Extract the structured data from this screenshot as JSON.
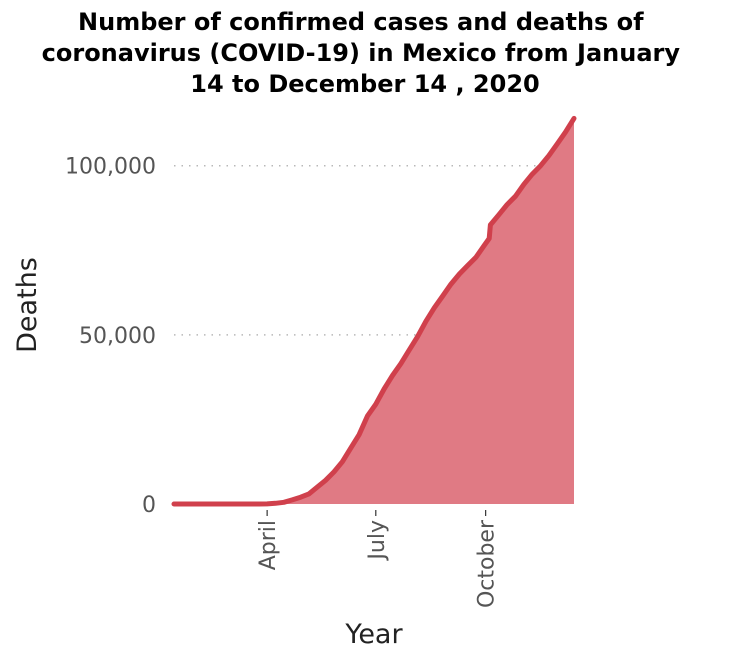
{
  "chart_data": {
    "type": "area",
    "title": "Number of confirmed cases and deaths of coronavirus (COVID-19) in Mexico from January 14 to December 14 , 2020",
    "title_lines": [
      "Number of confirmed cases and deaths of",
      "coronavirus (COVID-19) in Mexico from January",
      "14 to December 14 , 2020"
    ],
    "xlabel": "Year",
    "ylabel": "Deaths",
    "x_range": [
      "2020-01-14",
      "2020-12-14"
    ],
    "ylim": [
      0,
      115000
    ],
    "x_ticks": [
      {
        "label": "April",
        "date": "2020-04-01"
      },
      {
        "label": "July",
        "date": "2020-07-01"
      },
      {
        "label": "October",
        "date": "2020-10-01"
      }
    ],
    "y_ticks": [
      {
        "label": "0",
        "value": 0
      },
      {
        "label": "50,000",
        "value": 50000
      },
      {
        "label": "100,000",
        "value": 100000
      }
    ],
    "grid": {
      "horizontal": true,
      "vertical": false,
      "style": "dotted"
    },
    "legend": "none",
    "colors": {
      "line": "#d0404c",
      "fill": "#e07a84"
    },
    "series": [
      {
        "x": [
          "2020-01-14",
          "2020-03-18",
          "2020-03-25",
          "2020-04-01",
          "2020-04-08",
          "2020-04-15",
          "2020-04-22",
          "2020-04-29",
          "2020-05-06",
          "2020-05-13",
          "2020-05-20",
          "2020-05-27",
          "2020-06-03",
          "2020-06-10",
          "2020-06-17",
          "2020-06-24",
          "2020-07-01",
          "2020-07-08",
          "2020-07-15",
          "2020-07-22",
          "2020-07-29",
          "2020-08-05",
          "2020-08-12",
          "2020-08-19",
          "2020-08-26",
          "2020-09-02",
          "2020-09-09",
          "2020-09-16",
          "2020-09-23",
          "2020-09-30",
          "2020-10-04",
          "2020-10-05",
          "2020-10-12",
          "2020-10-19",
          "2020-10-26",
          "2020-11-02",
          "2020-11-09",
          "2020-11-16",
          "2020-11-23",
          "2020-11-30",
          "2020-12-07",
          "2020-12-14"
        ],
        "values": [
          0,
          0,
          10,
          30,
          200,
          500,
          1200,
          2000,
          3000,
          5000,
          7000,
          9500,
          12500,
          16500,
          20500,
          26000,
          29500,
          34000,
          38000,
          41500,
          45500,
          49500,
          54000,
          58000,
          61500,
          65000,
          68000,
          70500,
          73000,
          76500,
          78500,
          82500,
          85500,
          88500,
          91000,
          94500,
          97500,
          100000,
          103000,
          106500,
          110000,
          114000
        ]
      }
    ]
  }
}
